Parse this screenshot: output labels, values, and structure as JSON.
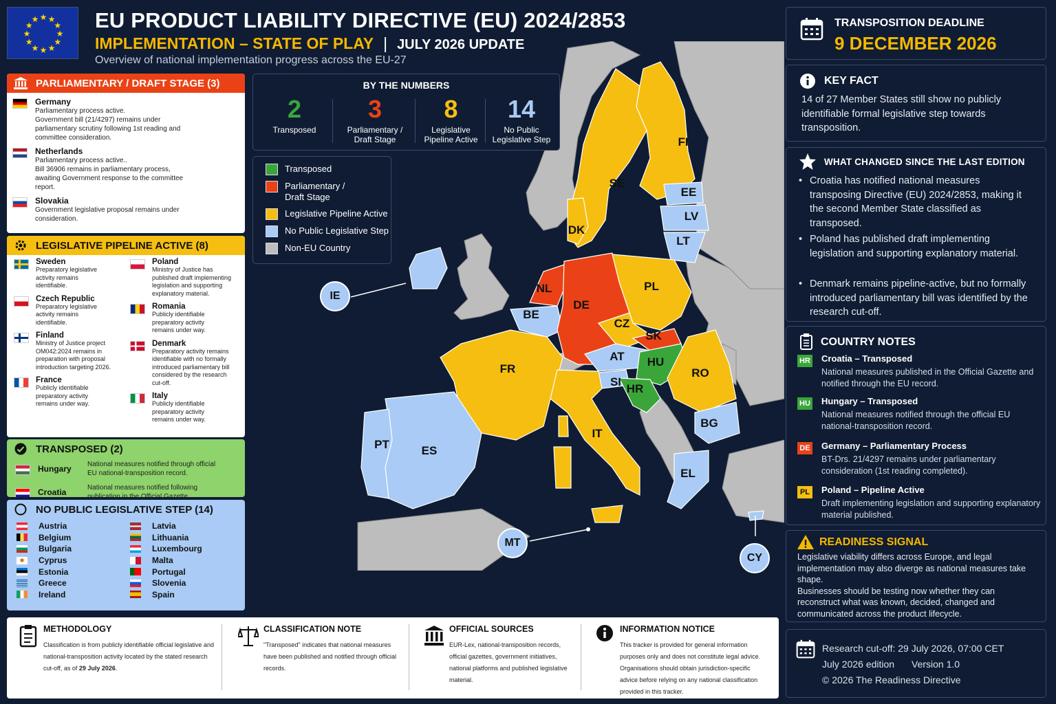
{
  "header": {
    "title": "EU PRODUCT LIABILITY DIRECTIVE (EU) 2024/2853",
    "subtitle": "IMPLEMENTATION – STATE OF PLAY",
    "separator": "|",
    "update": "JULY 2026 UPDATE",
    "tagline": "Overview of national implementation progress across the EU-27"
  },
  "colors": {
    "transposed": "#3aa63a",
    "parliamentary": "#ea4216",
    "pipeline": "#f5be10",
    "no_step": "#a9cbf5",
    "non_eu": "#bdbdbd",
    "background": "#0f1c33",
    "accent": "#f5b800"
  },
  "parliamentary": {
    "heading": "PARLIAMENTARY / DRAFT STAGE (3)",
    "icon": "parliament-icon",
    "items": [
      {
        "name": "Germany",
        "desc1": "Parliamentary process active.",
        "desc2": "Government bill (21/4297) remains under parliamentary scrutiny following 1st reading and committee consideration."
      },
      {
        "name": "Netherlands",
        "desc1": "Parliamentary process active..",
        "desc2": "Bill 36906 remains in parliamentary process, awaiting Government response to the committee report."
      },
      {
        "name": "Slovakia",
        "desc1": "Government legislative proposal remains under consideration.",
        "desc2": ""
      }
    ]
  },
  "pipeline": {
    "heading": "LEGISLATIVE PIPELINE ACTIVE (8)",
    "icon": "gear-icon",
    "left": [
      {
        "name": "Sweden",
        "desc": "Preparatory legislative activity remains identifiable."
      },
      {
        "name": "Czech Republic",
        "desc": "Preparatory legislative activity remains identifiable."
      },
      {
        "name": "Finland",
        "desc": "Ministry of Justice project OM042:2024 remains in preparation with proposal introduction targeting 2026."
      },
      {
        "name": "France",
        "desc": "Publicly identifiable preparatory activity remains under way."
      }
    ],
    "right": [
      {
        "name": "Poland",
        "desc": "Ministry of Justice has published draft implementing legislation and supporting explanatory material."
      },
      {
        "name": "Romania",
        "desc": "Publicly identifiable preparatory activity remains under way."
      },
      {
        "name": "Denmark",
        "desc": "Preparatory activity remains identifiable with no formally introduced parliamentary bill considered by the research cut-off."
      },
      {
        "name": "Italy",
        "desc": "Publicly identifiable preparatory activity remains under way."
      }
    ]
  },
  "transposed": {
    "heading": "TRANSPOSED (2)",
    "icon": "check-circle-icon",
    "items": [
      {
        "name": "Hungary",
        "desc": "National measures notified through official EU national-transposition record."
      },
      {
        "name": "Croatia",
        "desc": "National measures notified following publication in the Official Gazette."
      }
    ]
  },
  "no_step": {
    "heading": "NO PUBLIC LEGISLATIVE STEP (14)",
    "icon": "empty-circle-icon",
    "left": [
      "Austria",
      "Belgium",
      "Bulgaria",
      "Cyprus",
      "Estonia",
      "Greece",
      "Ireland"
    ],
    "right": [
      "Latvia",
      "Lithuania",
      "Luxembourg",
      "Malta",
      "Portugal",
      "Slovenia",
      "Spain"
    ]
  },
  "numbers": {
    "title": "BY THE NUMBERS",
    "stats": [
      {
        "value": "2",
        "label": "Transposed",
        "color": "#3aa63a"
      },
      {
        "value": "3",
        "label": "Parliamentary / Draft Stage",
        "color": "#ea4216"
      },
      {
        "value": "8",
        "label": "Legislative Pipeline Active",
        "color": "#f5be10"
      },
      {
        "value": "14",
        "label": "No Public Legislative Step",
        "color": "#a9cbf5"
      }
    ]
  },
  "legend": [
    {
      "label": "Transposed",
      "color": "#3aa63a"
    },
    {
      "label": "Parliamentary / Draft Stage",
      "color": "#ea4216"
    },
    {
      "label": "Legislative Pipeline Active",
      "color": "#f5be10"
    },
    {
      "label": "No Public Legislative Step",
      "color": "#a9cbf5"
    },
    {
      "label": "Non-EU Country",
      "color": "#bdbdbd"
    }
  ],
  "map": {
    "labels": [
      "FI",
      "SE",
      "EE",
      "LV",
      "LT",
      "DK",
      "NL",
      "DE",
      "PL",
      "BE",
      "CZ",
      "SK",
      "FR",
      "AT",
      "HU",
      "SI",
      "HR",
      "RO",
      "BG",
      "IT",
      "PT",
      "ES",
      "EL"
    ],
    "bubbles": [
      "IE",
      "MT",
      "CY"
    ]
  },
  "deadline": {
    "icon": "calendar-icon",
    "label": "TRANSPOSITION DEADLINE",
    "date": "9 DECEMBER 2026"
  },
  "key_fact": {
    "icon": "info-icon",
    "heading": "KEY FACT",
    "text": "14 of 27 Member States still show no publicly identifiable formal legislative step towards transposition."
  },
  "changes": {
    "icon": "star-icon",
    "heading": "WHAT CHANGED SINCE THE LAST EDITION",
    "bullets": [
      "Croatia has notified national measures transposing Directive (EU) 2024/2853, making it the second Member State classified as transposed.",
      "Poland has published draft implementing legislation and supporting explanatory material.",
      "Denmark remains pipeline-active, but no formally introduced parliamentary bill was identified by the research cut-off."
    ]
  },
  "notes": {
    "icon": "clipboard-icon",
    "heading": "COUNTRY NOTES",
    "items": [
      {
        "code": "HR",
        "title": "Croatia – Transposed",
        "desc": "National measures published in the Official Gazette and notified through the EU record.",
        "color": "#3aa63a"
      },
      {
        "code": "HU",
        "title": "Hungary – Transposed",
        "desc": "National measures notified through the official EU national-transposition record.",
        "color": "#3aa63a"
      },
      {
        "code": "DE",
        "title": "Germany – Parliamentary Process",
        "desc": "BT-Drs. 21/4297 remains under parliamentary consideration (1st reading completed).",
        "color": "#ea4216"
      },
      {
        "code": "PL",
        "title": "Poland – Pipeline Active",
        "desc": "Draft implementing legislation and supporting explanatory material published.",
        "color": "#f5be10"
      }
    ]
  },
  "readiness": {
    "icon": "warning-icon",
    "heading": "READINESS SIGNAL",
    "p1": "Legislative viability differs across Europe, and legal implementation may also diverge as national measures take shape.",
    "p2": "Businesses should be testing now whether they can reconstruct what was known, decided, changed and communicated across the product lifecycle."
  },
  "cutoff": {
    "icon": "calendar-icon",
    "line1": "Research cut-off: 29 July 2026, 07:00 CET",
    "edition": "July 2026 edition",
    "version": "Version 1.0",
    "copyright": "© 2026 The Readiness Directive"
  },
  "bottom": {
    "methodology": {
      "icon": "clipboard-icon",
      "heading": "METHODOLOGY",
      "text_a": "Classification is from publicly identifiable official legislative and national-transposition activity located by the stated research cut-off, as of ",
      "date": "29 July 2026",
      "text_b": "."
    },
    "classification": {
      "icon": "scales-icon",
      "heading": "CLASSIFICATION NOTE",
      "text": "\"Transposed\" indicates that national measures have been published and notified through official records."
    },
    "sources": {
      "icon": "building-icon",
      "heading": "OFFICIAL SOURCES",
      "text": "EUR-Lex, national-transposition records, official gazettes, government initiatives, national platforms and published legislative material."
    },
    "notice": {
      "icon": "info-icon",
      "heading": "INFORMATION NOTICE",
      "text": "This tracker is provided for general information purposes only and does not constitute legal advice. Organisations should obtain jurisdiction-specific advice before relying on any national classification provided in this tracker."
    }
  }
}
